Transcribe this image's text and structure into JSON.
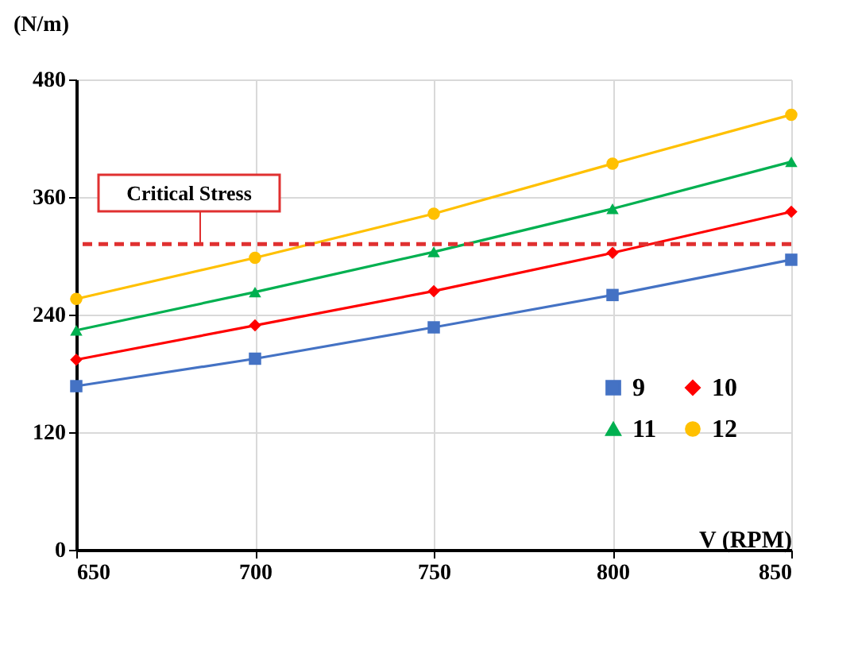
{
  "chart_data": {
    "type": "line",
    "xlabel": "V (RPM)",
    "ylabel": "(N/m)",
    "x": [
      650,
      700,
      750,
      800,
      850
    ],
    "series": [
      {
        "name": "9",
        "color": "#4472c4",
        "marker": "square",
        "values": [
          167,
          195,
          227,
          260,
          296
        ]
      },
      {
        "name": "10",
        "color": "#ff0000",
        "marker": "diamond",
        "values": [
          194,
          229,
          264,
          303,
          345
        ]
      },
      {
        "name": "11",
        "color": "#00b050",
        "marker": "triangle",
        "values": [
          224,
          263,
          304,
          348,
          396
        ]
      },
      {
        "name": "12",
        "color": "#ffc000",
        "marker": "circle",
        "values": [
          256,
          298,
          343,
          394,
          444
        ]
      }
    ],
    "xlim": [
      650,
      850
    ],
    "xticks": [
      650,
      700,
      750,
      800,
      850
    ],
    "ylim": [
      0,
      480
    ],
    "yticks": [
      0,
      120,
      240,
      360,
      480
    ],
    "ref_lines": [
      {
        "axis": "y",
        "value": 312,
        "label": "Critical Stress",
        "color": "#e03030",
        "line_style": "dashed"
      }
    ],
    "grid": true,
    "legend": "bottom right",
    "line_style": "solid"
  }
}
